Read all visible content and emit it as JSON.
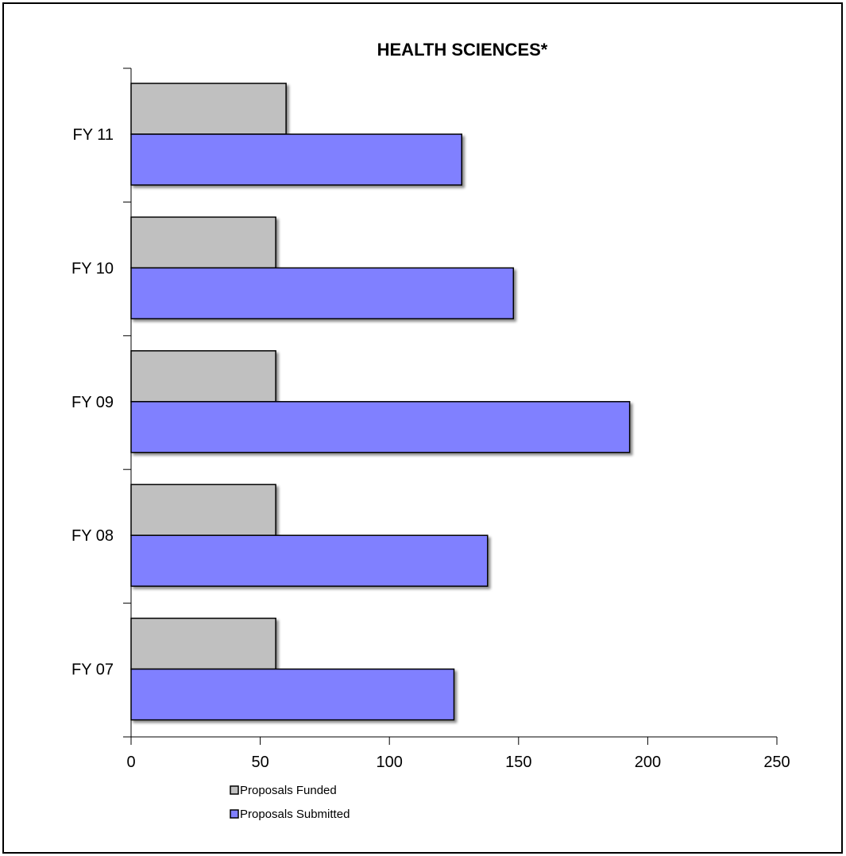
{
  "chart_data": {
    "type": "bar",
    "orientation": "horizontal",
    "title": "HEALTH SCIENCES*",
    "xlabel": "",
    "ylabel": "",
    "categories": [
      "FY 07",
      "FY 08",
      "FY 09",
      "FY 10",
      "FY 11"
    ],
    "series": [
      {
        "name": "Proposals Funded",
        "values": [
          56,
          56,
          56,
          56,
          60
        ],
        "color": "#c0c0c0"
      },
      {
        "name": "Proposals Submitted",
        "values": [
          125,
          138,
          193,
          148,
          128
        ],
        "color": "#8080ff"
      }
    ],
    "xlim": [
      0,
      250
    ],
    "xticks": [
      "0",
      "50",
      "100",
      "150",
      "200",
      "250"
    ],
    "grid": false,
    "legend_position": "bottom"
  }
}
